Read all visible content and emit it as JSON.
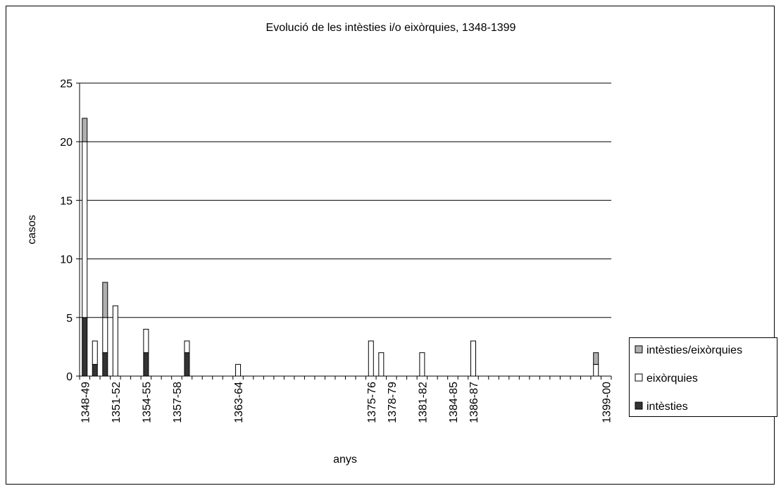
{
  "chart_data": {
    "type": "stacked_bar",
    "title": "Evolució de les intèsties i/o eixòrquies, 1348-1399",
    "x_label": "anys",
    "y_label": "casos",
    "categories": [
      "1348-49",
      null,
      null,
      "1351-52",
      null,
      null,
      "1354-55",
      null,
      null,
      "1357-58",
      null,
      null,
      null,
      null,
      null,
      "1363-64",
      null,
      null,
      null,
      null,
      null,
      null,
      null,
      null,
      null,
      null,
      null,
      null,
      "1375-76",
      null,
      "1378-79",
      null,
      null,
      "1381-82",
      null,
      null,
      "1384-85",
      null,
      "1386-87",
      null,
      null,
      null,
      null,
      null,
      null,
      null,
      null,
      null,
      null,
      null,
      null,
      "1399-00"
    ],
    "series": [
      {
        "name": "intèsties",
        "color": "#333333",
        "values": [
          5,
          1,
          2,
          0,
          0,
          0,
          2,
          0,
          0,
          0,
          2,
          0,
          0,
          0,
          0,
          0,
          0,
          0,
          0,
          0,
          0,
          0,
          0,
          0,
          0,
          0,
          0,
          0,
          0,
          0,
          0,
          0,
          0,
          0,
          0,
          0,
          0,
          0,
          0,
          0,
          0,
          0,
          0,
          0,
          0,
          0,
          0,
          0,
          0,
          0,
          0,
          0
        ]
      },
      {
        "name": "eixòrquies",
        "color": "#ffffff",
        "values": [
          15,
          2,
          3,
          6,
          0,
          0,
          2,
          0,
          0,
          0,
          1,
          0,
          0,
          0,
          0,
          1,
          0,
          0,
          0,
          0,
          0,
          0,
          0,
          0,
          0,
          0,
          0,
          0,
          3,
          2,
          0,
          0,
          0,
          2,
          0,
          0,
          0,
          0,
          3,
          0,
          0,
          0,
          0,
          0,
          0,
          0,
          0,
          0,
          0,
          0,
          1,
          0
        ]
      },
      {
        "name": "intèsties/eixòrquies",
        "color": "#b0b0b0",
        "values": [
          2,
          0,
          3,
          0,
          0,
          0,
          0,
          0,
          0,
          0,
          0,
          0,
          0,
          0,
          0,
          0,
          0,
          0,
          0,
          0,
          0,
          0,
          0,
          0,
          0,
          0,
          0,
          0,
          0,
          0,
          0,
          0,
          0,
          0,
          0,
          0,
          0,
          0,
          0,
          0,
          0,
          0,
          0,
          0,
          0,
          0,
          0,
          0,
          0,
          0,
          1,
          0
        ]
      }
    ],
    "ylim": [
      0,
      25
    ],
    "yticks": [
      0,
      5,
      10,
      15,
      20,
      25
    ],
    "grid": true
  }
}
